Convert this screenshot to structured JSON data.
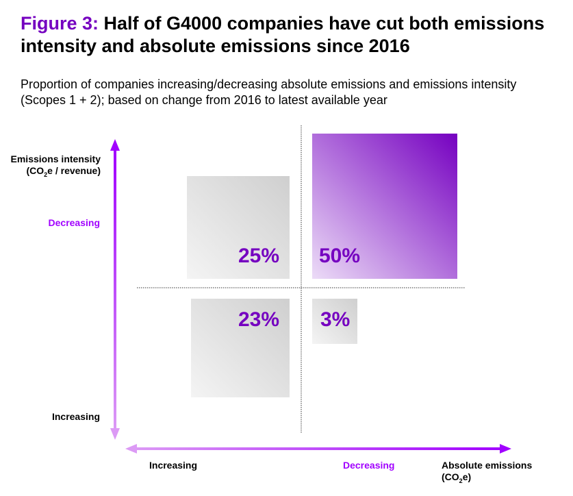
{
  "title": {
    "figure": "Figure 3:",
    "text": "Half of G4000 companies have cut both emissions intensity and absolute emissions since 2016"
  },
  "subtitle": "Proportion of companies increasing/decreasing absolute emissions and emissions intensity (Scopes 1 + 2); based on change from 2016 to latest available year",
  "chart_data": {
    "type": "quadrant",
    "y_axis": {
      "label_main": "Emissions intensity",
      "label_unit_pre": "(CO",
      "label_unit_sub": "2",
      "label_unit_post": "e / revenue)",
      "top": "Decreasing",
      "bottom": "Increasing"
    },
    "x_axis": {
      "label_main": "Absolute emissions",
      "label_unit_pre": "(CO",
      "label_unit_sub": "2",
      "label_unit_post": "e)",
      "left": "Increasing",
      "right": "Decreasing"
    },
    "quadrants": [
      {
        "intensity": "Decreasing",
        "absolute": "Increasing",
        "value": 25,
        "label": "25%"
      },
      {
        "intensity": "Decreasing",
        "absolute": "Decreasing",
        "value": 50,
        "label": "50%"
      },
      {
        "intensity": "Increasing",
        "absolute": "Increasing",
        "value": 23,
        "label": "23%"
      },
      {
        "intensity": "Increasing",
        "absolute": "Decreasing",
        "value": 3,
        "label": "3%"
      }
    ],
    "colors": {
      "highlight": "#7500c0",
      "axis": "#a100ff",
      "neutral": "#d0d0d0"
    }
  }
}
